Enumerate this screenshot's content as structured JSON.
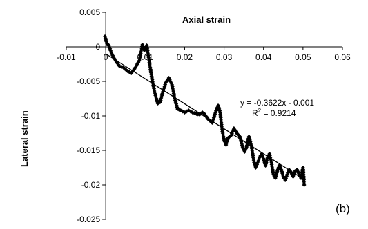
{
  "chart_data": {
    "type": "scatter",
    "xlabel": "Axial strain",
    "ylabel": "Lateral strain",
    "panel_label": "(b)",
    "xlim": [
      -0.01,
      0.06
    ],
    "ylim": [
      -0.025,
      0.005
    ],
    "x_ticks": [
      -0.01,
      0,
      0.01,
      0.02,
      0.03,
      0.04,
      0.05,
      0.06
    ],
    "y_ticks": [
      0.005,
      0,
      -0.005,
      -0.01,
      -0.015,
      -0.02,
      -0.025
    ],
    "x_tick_labels": [
      "-0.01",
      "0",
      "0.01",
      "0.02",
      "0.03",
      "0.04",
      "0.05",
      "0.06"
    ],
    "y_tick_labels": [
      "0.005",
      "0",
      "-0.005",
      "-0.01",
      "-0.015",
      "-0.02",
      "-0.025"
    ],
    "grid": false,
    "marker_color": "#000000",
    "trendline": {
      "equation": "y = -0.3622x - 0.001",
      "r2_prefix": "R",
      "r2_sup": "2",
      "r2_value": " = 0.9214",
      "slope": -0.3622,
      "intercept": -0.001,
      "x_range": [
        0,
        0.0505
      ]
    },
    "path_points": [
      [
        -0.0002,
        0.0015
      ],
      [
        0.0003,
        0.0005
      ],
      [
        0.0008,
        0.0002
      ],
      [
        0.0015,
        -0.001
      ],
      [
        0.0025,
        -0.002
      ],
      [
        0.0035,
        -0.0028
      ],
      [
        0.0045,
        -0.003
      ],
      [
        0.0055,
        -0.0035
      ],
      [
        0.0065,
        -0.0038
      ],
      [
        0.0075,
        -0.003
      ],
      [
        0.0085,
        -0.002
      ],
      [
        0.0093,
        0.0003
      ],
      [
        0.0098,
        -0.0005
      ],
      [
        0.0104,
        0.0002
      ],
      [
        0.011,
        -0.002
      ],
      [
        0.0117,
        -0.0045
      ],
      [
        0.0125,
        -0.0068
      ],
      [
        0.0132,
        -0.0082
      ],
      [
        0.0138,
        -0.008
      ],
      [
        0.0145,
        -0.0065
      ],
      [
        0.0152,
        -0.0052
      ],
      [
        0.016,
        -0.0045
      ],
      [
        0.0168,
        -0.0055
      ],
      [
        0.0175,
        -0.0075
      ],
      [
        0.0182,
        -0.009
      ],
      [
        0.019,
        -0.0092
      ],
      [
        0.02,
        -0.0095
      ],
      [
        0.021,
        -0.0092
      ],
      [
        0.022,
        -0.0095
      ],
      [
        0.023,
        -0.0097
      ],
      [
        0.0238,
        -0.0098
      ],
      [
        0.0245,
        -0.0095
      ],
      [
        0.025,
        -0.0097
      ],
      [
        0.026,
        -0.0105
      ],
      [
        0.027,
        -0.011
      ],
      [
        0.0278,
        -0.0095
      ],
      [
        0.0285,
        -0.0085
      ],
      [
        0.029,
        -0.0095
      ],
      [
        0.0295,
        -0.012
      ],
      [
        0.03,
        -0.0135
      ],
      [
        0.0305,
        -0.0142
      ],
      [
        0.031,
        -0.0132
      ],
      [
        0.0318,
        -0.0128
      ],
      [
        0.0325,
        -0.0118
      ],
      [
        0.0332,
        -0.0125
      ],
      [
        0.034,
        -0.013
      ],
      [
        0.0347,
        -0.0145
      ],
      [
        0.0352,
        -0.0152
      ],
      [
        0.0357,
        -0.0145
      ],
      [
        0.0363,
        -0.013
      ],
      [
        0.037,
        -0.0145
      ],
      [
        0.0375,
        -0.0165
      ],
      [
        0.038,
        -0.0175
      ],
      [
        0.0385,
        -0.0168
      ],
      [
        0.039,
        -0.016
      ],
      [
        0.0395,
        -0.0155
      ],
      [
        0.04,
        -0.0162
      ],
      [
        0.0405,
        -0.0172
      ],
      [
        0.041,
        -0.016
      ],
      [
        0.0415,
        -0.0155
      ],
      [
        0.042,
        -0.0168
      ],
      [
        0.0425,
        -0.0185
      ],
      [
        0.043,
        -0.019
      ],
      [
        0.0435,
        -0.018
      ],
      [
        0.044,
        -0.0172
      ],
      [
        0.0445,
        -0.0178
      ],
      [
        0.045,
        -0.0188
      ],
      [
        0.0455,
        -0.0193
      ],
      [
        0.046,
        -0.0185
      ],
      [
        0.0465,
        -0.0178
      ],
      [
        0.047,
        -0.0182
      ],
      [
        0.0475,
        -0.0188
      ],
      [
        0.048,
        -0.018
      ],
      [
        0.0485,
        -0.0178
      ],
      [
        0.049,
        -0.0185
      ],
      [
        0.0495,
        -0.019
      ],
      [
        0.05,
        -0.0175
      ],
      [
        0.0503,
        -0.02
      ]
    ]
  }
}
